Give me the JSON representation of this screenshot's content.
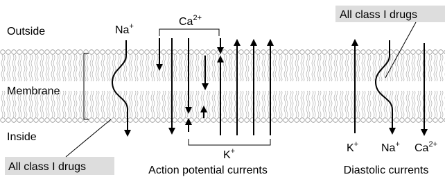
{
  "labels": {
    "outside": "Outside",
    "membrane": "Membrane",
    "inside": "Inside"
  },
  "action_potential": {
    "title": "Action potential currents",
    "na": {
      "base": "Na",
      "sup": "+"
    },
    "ca": {
      "base": "Ca",
      "sup": "2+"
    },
    "k": {
      "base": "K",
      "sup": "+"
    }
  },
  "diastolic": {
    "title": "Diastolic currents",
    "k": {
      "base": "K",
      "sup": "+"
    },
    "na": {
      "base": "Na",
      "sup": "+"
    },
    "ca": {
      "base": "Ca",
      "sup": "2+"
    }
  },
  "drug_labels": [
    "All class I drugs",
    "All class I drugs"
  ]
}
